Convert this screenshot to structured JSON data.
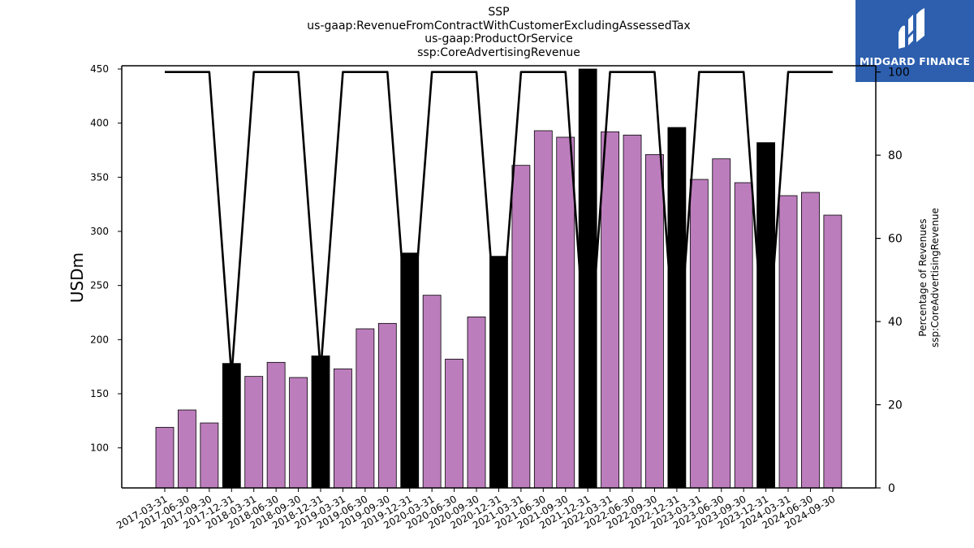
{
  "brand": {
    "name": "MIDGARD FINANCE",
    "color": "#2d5fae"
  },
  "chart_data": {
    "type": "bar",
    "title_lines": [
      "SSP",
      "us-gaap:RevenueFromContractWithCustomerExcludingAssessedTax",
      "us-gaap:ProductOrService",
      "ssp:CoreAdvertisingRevenue"
    ],
    "ylabel": "USDm",
    "y2label_lines": [
      "Percentage of Revenues",
      "ssp:CoreAdvertisingRevenue"
    ],
    "ylim": [
      63,
      453
    ],
    "y2lim": [
      0,
      101.5
    ],
    "yticks": [
      100,
      150,
      200,
      250,
      300,
      350,
      400,
      450
    ],
    "y2ticks": [
      0,
      20,
      40,
      60,
      80,
      100
    ],
    "colors": {
      "quarter": "#bc7dbd",
      "annual": "#000000",
      "line": "#000000"
    },
    "categories": [
      "2017-03-31",
      "2017-06-30",
      "2017-09-30",
      "2017-12-31",
      "2018-03-31",
      "2018-06-30",
      "2018-09-30",
      "2018-12-31",
      "2019-03-31",
      "2019-06-30",
      "2019-09-30",
      "2019-12-31",
      "2020-03-31",
      "2020-06-30",
      "2020-09-30",
      "2020-12-31",
      "2021-03-31",
      "2021-06-30",
      "2021-09-30",
      "2021-12-31",
      "2022-03-31",
      "2022-06-30",
      "2022-09-30",
      "2022-12-31",
      "2023-03-31",
      "2023-06-30",
      "2023-09-30",
      "2023-12-31",
      "2024-03-31",
      "2024-06-30",
      "2024-09-30"
    ],
    "series": [
      {
        "values": [
          119,
          135,
          123,
          178,
          166,
          179,
          165,
          185,
          173,
          210,
          215,
          280,
          241,
          182,
          221,
          277,
          361,
          393,
          387,
          450,
          392,
          389,
          371,
          396,
          348,
          367,
          345,
          382,
          333,
          336,
          315
        ]
      },
      {
        "axis": "right",
        "type": "line",
        "values": [
          100,
          100,
          100,
          27,
          100,
          100,
          100,
          28,
          100,
          100,
          100,
          30,
          100,
          100,
          100,
          30,
          100,
          100,
          100,
          25,
          100,
          100,
          100,
          26,
          100,
          100,
          100,
          27,
          100,
          100,
          100
        ]
      }
    ],
    "annual_flags": [
      false,
      false,
      false,
      true,
      false,
      false,
      false,
      true,
      false,
      false,
      false,
      true,
      false,
      false,
      false,
      true,
      false,
      false,
      false,
      true,
      false,
      false,
      false,
      true,
      false,
      false,
      false,
      true,
      false,
      false,
      false
    ],
    "grid": false,
    "legend": "none"
  }
}
